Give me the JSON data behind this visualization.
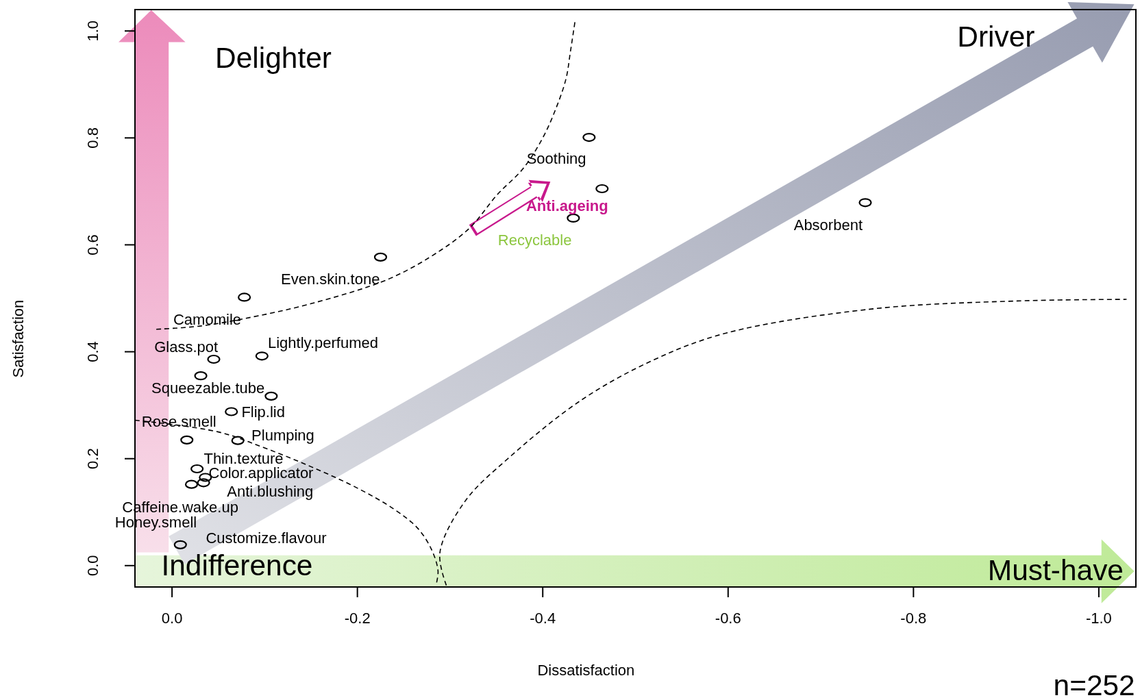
{
  "chart_data": {
    "type": "scatter",
    "xlabel": "Dissatisfaction",
    "ylabel": "Satisfaction",
    "annotations": [
      "Delighter",
      "Driver",
      "Indifference",
      "Must-have",
      "n=252"
    ],
    "xlim": [
      0.04,
      -1.04
    ],
    "ylim": [
      -0.04,
      1.04
    ],
    "xticks": [
      {
        "value": 0,
        "label": "0.0"
      },
      {
        "value": -0.2,
        "label": "-0.2"
      },
      {
        "value": -0.4,
        "label": "-0.4"
      },
      {
        "value": -0.6,
        "label": "-0.6"
      },
      {
        "value": -0.8,
        "label": "-0.8"
      },
      {
        "value": -1,
        "label": "-1.0"
      }
    ],
    "yticks": [
      {
        "value": 0,
        "label": "0.0"
      },
      {
        "value": 0.2,
        "label": "0.2"
      },
      {
        "value": 0.4,
        "label": "0.4"
      },
      {
        "value": 0.6,
        "label": "0.6"
      },
      {
        "value": 0.8,
        "label": "0.8"
      },
      {
        "value": 1,
        "label": "1.0"
      }
    ],
    "grid": false,
    "marker": "circle",
    "series": [
      {
        "color": "#000000",
        "x": [
          -0.45,
          -0.464,
          -0.433,
          -0.748,
          -0.225,
          -0.078,
          -0.097,
          -0.045,
          -0.031,
          -0.107,
          -0.064,
          -0.071,
          -0.016,
          -0.027,
          -0.036,
          -0.034,
          -0.021,
          -0.009
        ],
        "values": [
          0.801,
          0.705,
          0.65,
          0.679,
          0.577,
          0.502,
          0.392,
          0.386,
          0.355,
          0.317,
          0.288,
          0.234,
          0.235,
          0.181,
          0.165,
          0.155,
          0.152,
          0.039
        ],
        "value_labels": [
          "Soothing",
          "Anti.ageing",
          "Recyclable",
          "Absorbent",
          "Even.skin.tone",
          "Camomile",
          "Lightly.perfumed",
          "Glass.pot",
          "Squeezable.tube",
          "Flip.lid",
          "Rose.smell",
          "Plumping",
          "Thin.texture",
          "Color.applicator",
          "Anti.blushing",
          "Caffeine.wake.up",
          "Honey.smell",
          "Customize.flavour"
        ]
      },
      {
        "type": "line",
        "color": "#000000",
        "line_style": "dashed",
        "marker": "none",
        "x": [
          0.017,
          -0.03,
          -0.078,
          -0.15,
          -0.235,
          -0.29,
          -0.322,
          -0.351,
          -0.379,
          -0.4,
          -0.414,
          -0.425,
          -0.43,
          -0.435
        ],
        "values": [
          0.442,
          0.448,
          0.462,
          0.49,
          0.537,
          0.59,
          0.633,
          0.694,
          0.743,
          0.8,
          0.854,
          0.91,
          0.963,
          1.02
        ]
      },
      {
        "type": "line",
        "color": "#000000",
        "line_style": "dashed",
        "marker": "none",
        "x": [
          0.04,
          -0.05,
          -0.1,
          -0.15,
          -0.2,
          -0.24,
          -0.265,
          -0.28,
          -0.287,
          -0.285
        ],
        "values": [
          0.272,
          0.25,
          0.22,
          0.185,
          0.145,
          0.105,
          0.07,
          0.03,
          -0.01,
          -0.035
        ]
      },
      {
        "type": "line",
        "color": "#000000",
        "line_style": "dashed",
        "marker": "none",
        "x": [
          -0.296,
          -0.289,
          -0.316,
          -0.363,
          -0.442,
          -0.52,
          -0.598,
          -0.755,
          -0.912,
          -1.03
        ],
        "values": [
          -0.037,
          0.024,
          0.12,
          0.201,
          0.31,
          0.385,
          0.435,
          0.48,
          0.495,
          0.498
        ]
      }
    ]
  }
}
